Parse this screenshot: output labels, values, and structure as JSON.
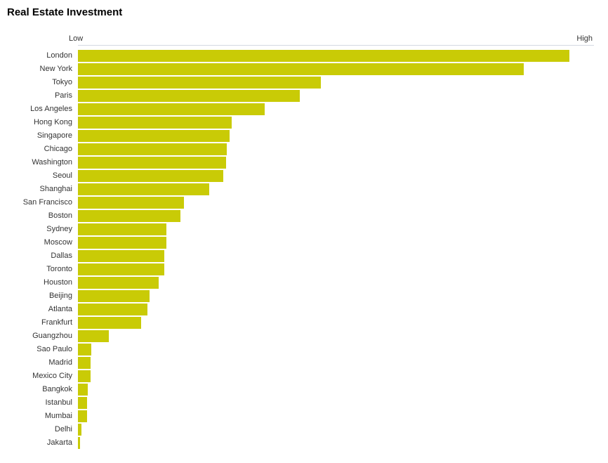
{
  "title": "Real Estate Investment",
  "axis": {
    "low_label": "Low",
    "high_label": "High"
  },
  "colors": {
    "bar": "#c9cb06",
    "axis_line": "#d4d8e2",
    "label_text": "#333333",
    "title_text": "#000000",
    "background": "#ffffff"
  },
  "chart_data": {
    "type": "bar",
    "orientation": "horizontal",
    "title": "Real Estate Investment",
    "xlabel": "",
    "ylabel": "",
    "x_axis_endpoint_labels": [
      "Low",
      "High"
    ],
    "x_range_pct": [
      0,
      100
    ],
    "grid": false,
    "legend": false,
    "categories": [
      "London",
      "New York",
      "Tokyo",
      "Paris",
      "Los Angeles",
      "Hong Kong",
      "Singapore",
      "Chicago",
      "Washington",
      "Seoul",
      "Shanghai",
      "San Francisco",
      "Boston",
      "Sydney",
      "Moscow",
      "Dallas",
      "Toronto",
      "Houston",
      "Beijing",
      "Atlanta",
      "Frankfurt",
      "Guangzhou",
      "Sao Paulo",
      "Madrid",
      "Mexico City",
      "Bangkok",
      "Istanbul",
      "Mumbai",
      "Delhi",
      "Jakarta"
    ],
    "values": [
      95.2,
      86.4,
      47.1,
      43.0,
      36.2,
      29.8,
      29.4,
      28.8,
      28.7,
      28.1,
      25.4,
      20.5,
      19.8,
      17.2,
      17.1,
      16.8,
      16.7,
      15.6,
      13.9,
      13.5,
      12.2,
      6.0,
      2.6,
      2.5,
      2.5,
      1.9,
      1.8,
      1.8,
      0.7,
      0.4
    ],
    "values_note": "relative investment level, percent of axis length from Low (0) to High (100); no numeric ticks shown"
  }
}
